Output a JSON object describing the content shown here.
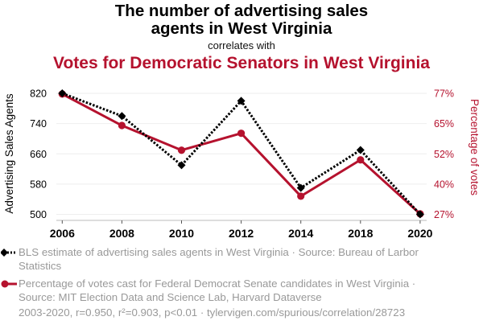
{
  "header": {
    "title_line1": "The number of advertising sales",
    "title_line2": "agents in West Virginia",
    "connector": "correlates with",
    "title_secondary": "Votes for Democratic Senators in West Virginia"
  },
  "chart_data": {
    "type": "line",
    "title": "The number of advertising sales agents in West Virginia correlates with Votes for Democratic Senators in West Virginia",
    "categories": [
      "2006",
      "2008",
      "2010",
      "2012",
      "2014",
      "2018",
      "2020"
    ],
    "series": [
      {
        "name": "BLS estimate of advertising sales agents in West Virginia",
        "axis": "left",
        "color": "#000000",
        "style": "dotted",
        "marker": "diamond",
        "values": [
          820,
          760,
          630,
          800,
          570,
          670,
          500
        ]
      },
      {
        "name": "Percentage of votes cast for Federal Democrat Senate candidates in West Virginia",
        "axis": "right",
        "color": "#b5122e",
        "style": "solid",
        "marker": "circle",
        "values": [
          76.7,
          63.7,
          53.5,
          60.5,
          34.5,
          49.5,
          27.2
        ]
      }
    ],
    "y_left": {
      "label": "Advertising Sales Agents",
      "ticks": [
        820,
        740,
        660,
        580,
        500
      ],
      "tick_labels": [
        "820",
        "740",
        "660",
        "580",
        "500"
      ],
      "range": [
        500,
        820
      ]
    },
    "y_right": {
      "label": "Percentage of votes",
      "ticks": [
        77,
        65,
        52,
        40,
        27
      ],
      "tick_labels": [
        "77%",
        "65%",
        "52%",
        "40%",
        "27%"
      ],
      "range": [
        27,
        77
      ]
    },
    "xlabel": "",
    "grid": true,
    "legend_position": "bottom"
  },
  "legend": [
    {
      "text": "BLS estimate of advertising sales agents in West Virginia · Source: Bureau of Larbor Statistics"
    },
    {
      "text": "Percentage of votes cast for Federal Democrat Senate candidates in West Virginia · Source: MIT Election Data and Science Lab, Harvard Dataverse"
    }
  ],
  "footer": {
    "text": "2003-2020, r=0.950, r²=0.903, p<0.01 · tylervigen.com/spurious/correlation/28723"
  },
  "colors": {
    "primary": "#000000",
    "secondary": "#b5122e",
    "muted_text": "#999999",
    "grid": "#eeeeee"
  }
}
